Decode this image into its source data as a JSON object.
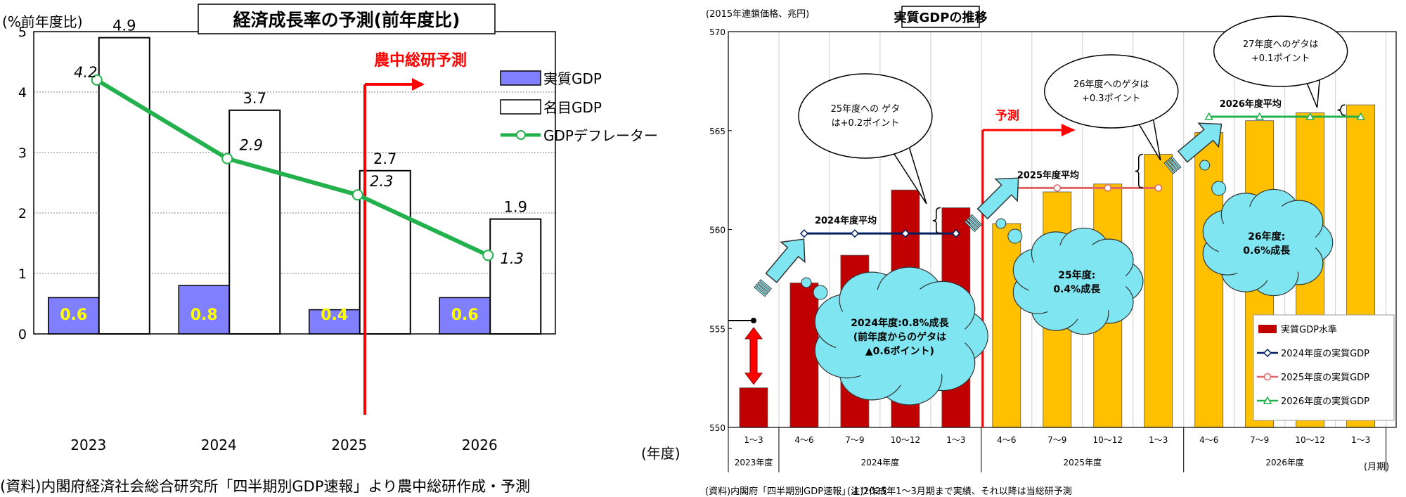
{
  "left": {
    "title": "経済成長率の予測(前年度比)",
    "y_unit": "(%前年度比)",
    "x_unit": "(年度)",
    "forecast_label": "農中総研予測",
    "legend": [
      "実質GDP",
      "名目GDP",
      "GDPデフレーター"
    ],
    "source": "(資料)内閣府経済社会総合研究所「四半期別GDP速報」より農中総研作成・予測",
    "colors": {
      "real": "#8080ff",
      "nominal": "#ffffff",
      "deflator": "#22b14c",
      "forecast": "#ff0000",
      "real_label": "#ffff00"
    }
  },
  "right": {
    "title": "実質GDPの推移",
    "y_unit": "(2015年連鎖価格、兆円)",
    "forecast_label": "予測",
    "month_unit": "(月期)",
    "legend": [
      "実質GDP水準",
      "2024年度の実質GDP",
      "2025年度の実質GDP",
      "2026年度の実質GDP"
    ],
    "avg_labels": [
      "2024年度平均",
      "2025年度平均",
      "2026年度平均"
    ],
    "bubbles": {
      "g24": [
        "2024年度:0.8%成長",
        "(前年度からのゲタは",
        "▲0.6ポイント)"
      ],
      "g25": [
        "25年度:",
        "0.4%成長"
      ],
      "g26": [
        "26年度:",
        "0.6%成長"
      ],
      "geta25": [
        "25年度への ゲタ",
        "は+0.2ポイント"
      ],
      "geta26": [
        "26年度へのゲタは",
        "+0.3ポイント"
      ],
      "geta27": [
        "27年度へのゲタは",
        "+0.1ポイント"
      ]
    },
    "source": "(資料)内閣府「四半期別GDP速報」より作成",
    "note": "(注)2025年1～3月期まで実績、それ以降は当総研予測",
    "colors": {
      "actual": "#c00000",
      "forecast": "#ffc000",
      "s2024": "#002060",
      "s2025": "#e06666",
      "s2026": "#22b14c",
      "bubble": "#7fe5f0",
      "arrow": "#7fe5f0"
    }
  },
  "chart_data": [
    {
      "type": "bar",
      "title": "経済成長率の予測(前年度比)",
      "categories": [
        "2023",
        "2024",
        "2025",
        "2026"
      ],
      "series": [
        {
          "name": "実質GDP",
          "type": "bar",
          "values": [
            0.6,
            0.8,
            0.4,
            0.6
          ]
        },
        {
          "name": "名目GDP",
          "type": "bar",
          "values": [
            4.9,
            3.7,
            2.7,
            1.9
          ]
        },
        {
          "name": "GDPデフレーター",
          "type": "line",
          "values": [
            4.2,
            2.9,
            2.3,
            1.3
          ]
        }
      ],
      "ylabel": "(%前年度比)",
      "xlabel": "(年度)",
      "ylim": [
        0,
        5
      ],
      "yticks": [
        0,
        1,
        2,
        3,
        4,
        5
      ],
      "grid": true,
      "legend_position": "top-right"
    },
    {
      "type": "bar",
      "title": "実質GDPの推移",
      "categories": [
        "1～3",
        "4～6",
        "7～9",
        "10～12",
        "1～3",
        "4～6",
        "7～9",
        "10～12",
        "1～3",
        "4～6",
        "7～9",
        "10～12",
        "1～3"
      ],
      "fiscal_years": [
        {
          "label": "2023年度",
          "count": 1
        },
        {
          "label": "2024年度",
          "count": 4
        },
        {
          "label": "2025年度",
          "count": 4
        },
        {
          "label": "2026年度",
          "count": 4
        }
      ],
      "series": [
        {
          "name": "実質GDP水準",
          "type": "bar",
          "values": [
            552.0,
            557.3,
            558.7,
            562.0,
            561.1,
            560.3,
            561.9,
            562.3,
            563.8,
            564.9,
            565.5,
            565.9,
            566.3
          ]
        },
        {
          "name": "2024年度の実質GDP",
          "type": "line",
          "values": [
            null,
            559.8,
            559.8,
            559.8,
            559.8,
            null,
            null,
            null,
            null,
            null,
            null,
            null,
            null
          ]
        },
        {
          "name": "2025年度の実質GDP",
          "type": "line",
          "values": [
            null,
            null,
            null,
            null,
            null,
            562.1,
            562.1,
            562.1,
            562.1,
            null,
            null,
            null,
            null
          ]
        },
        {
          "name": "2026年度の実質GDP",
          "type": "line",
          "values": [
            null,
            null,
            null,
            null,
            null,
            null,
            null,
            null,
            null,
            565.7,
            565.7,
            565.7,
            565.7
          ]
        }
      ],
      "prior_year_level": 555.4,
      "ylabel": "(2015年連鎖価格、兆円)",
      "ylim": [
        550,
        570
      ],
      "yticks": [
        550,
        555,
        560,
        565,
        570
      ],
      "grid": true,
      "legend_position": "bottom-right"
    }
  ]
}
